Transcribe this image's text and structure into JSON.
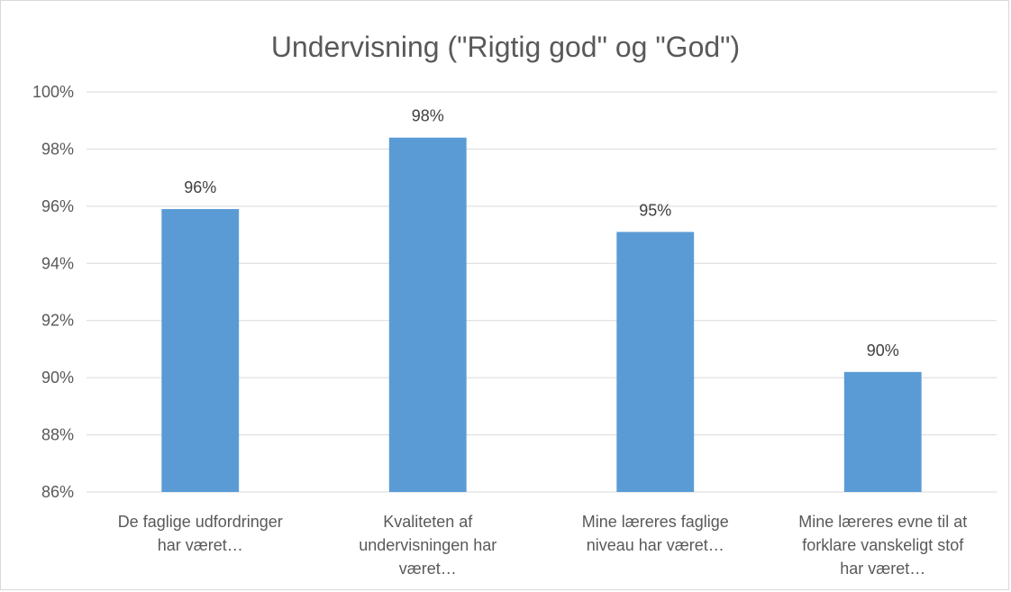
{
  "chart_data": {
    "type": "bar",
    "title": "Undervisning (\"Rigtig god\" og \"God\")",
    "categories": [
      [
        "De faglige udfordringer",
        "har været…"
      ],
      [
        "Kvaliteten af",
        "undervisningen har",
        "været…"
      ],
      [
        "Mine læreres faglige",
        "niveau har været…"
      ],
      [
        "Mine læreres evne til at",
        "forklare vanskeligt stof",
        "har været…"
      ]
    ],
    "values": [
      95.9,
      98.4,
      95.1,
      90.2
    ],
    "data_labels": [
      "96%",
      "98%",
      "95%",
      "90%"
    ],
    "ylim": [
      86,
      100
    ],
    "yticks": [
      86,
      88,
      90,
      92,
      94,
      96,
      98,
      100
    ],
    "ytick_labels": [
      "86%",
      "88%",
      "90%",
      "92%",
      "94%",
      "96%",
      "98%",
      "100%"
    ],
    "grid": true,
    "bar_color": "#5b9bd5",
    "grid_color": "#d9d9d9",
    "xlabel": "",
    "ylabel": ""
  }
}
